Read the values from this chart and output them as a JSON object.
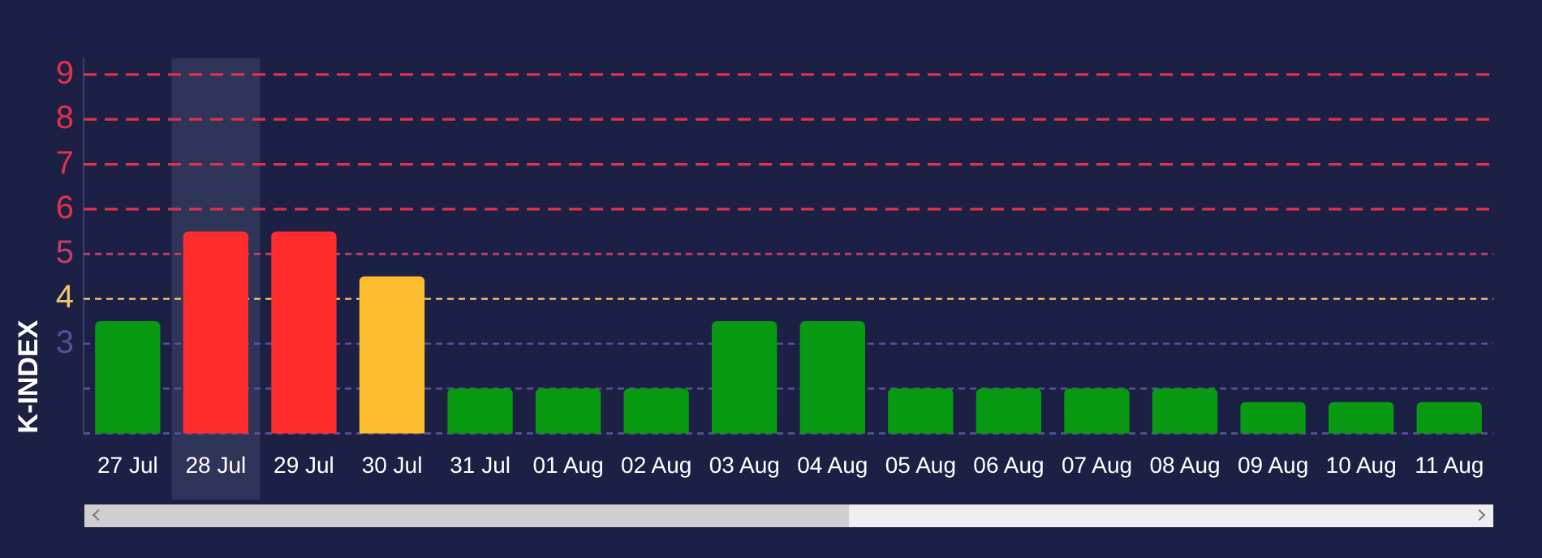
{
  "chart_data": {
    "type": "bar",
    "ylabel": "K-INDEX",
    "categories": [
      "27 Jul",
      "28 Jul",
      "29 Jul",
      "30 Jul",
      "31 Jul",
      "01 Aug",
      "02 Aug",
      "03 Aug",
      "04 Aug",
      "05 Aug",
      "06 Aug",
      "07 Aug",
      "08 Aug",
      "09 Aug",
      "10 Aug",
      "11 Aug"
    ],
    "values": [
      3.5,
      5.5,
      5.5,
      4.5,
      2,
      2,
      2,
      3.5,
      3.5,
      2,
      2,
      2,
      2,
      1.7,
      1.7,
      1.7
    ],
    "colors": [
      "#079a12",
      "#ff2d2d",
      "#ff2d2d",
      "#fbbc2e",
      "#079a12",
      "#079a12",
      "#079a12",
      "#079a12",
      "#079a12",
      "#079a12",
      "#079a12",
      "#079a12",
      "#079a12",
      "#079a12",
      "#079a12",
      "#079a12"
    ],
    "ylim": [
      1,
      9.36
    ],
    "yticks": [
      3,
      4,
      5,
      6,
      7,
      8,
      9
    ],
    "grid": false,
    "legend": false,
    "ref_lines": [
      {
        "axis": "y",
        "value": 9,
        "color": "#e0334a",
        "line_style": "dashed"
      },
      {
        "axis": "y",
        "value": 8,
        "color": "#e0334a",
        "line_style": "dashed"
      },
      {
        "axis": "y",
        "value": 7,
        "color": "#e0334a",
        "line_style": "dashed"
      },
      {
        "axis": "y",
        "value": 6,
        "color": "#e0334a",
        "line_style": "dashed"
      },
      {
        "axis": "y",
        "value": 5,
        "color": "#c0406a",
        "line_style": "dotted"
      },
      {
        "axis": "y",
        "value": 4,
        "color": "#f4c46a",
        "line_style": "dotted"
      },
      {
        "axis": "y",
        "value": 3,
        "color": "#5a4f99",
        "line_style": "dotted"
      },
      {
        "axis": "y",
        "value": 2,
        "color": "#5a4f99",
        "line_style": "dotted"
      },
      {
        "axis": "y",
        "value": 1,
        "color": "#5a4f99",
        "line_style": "dotted"
      }
    ],
    "bands": [
      {
        "axis": "x",
        "from": "28 Jul",
        "to": "28 Jul",
        "color": "#2f3459"
      }
    ]
  }
}
